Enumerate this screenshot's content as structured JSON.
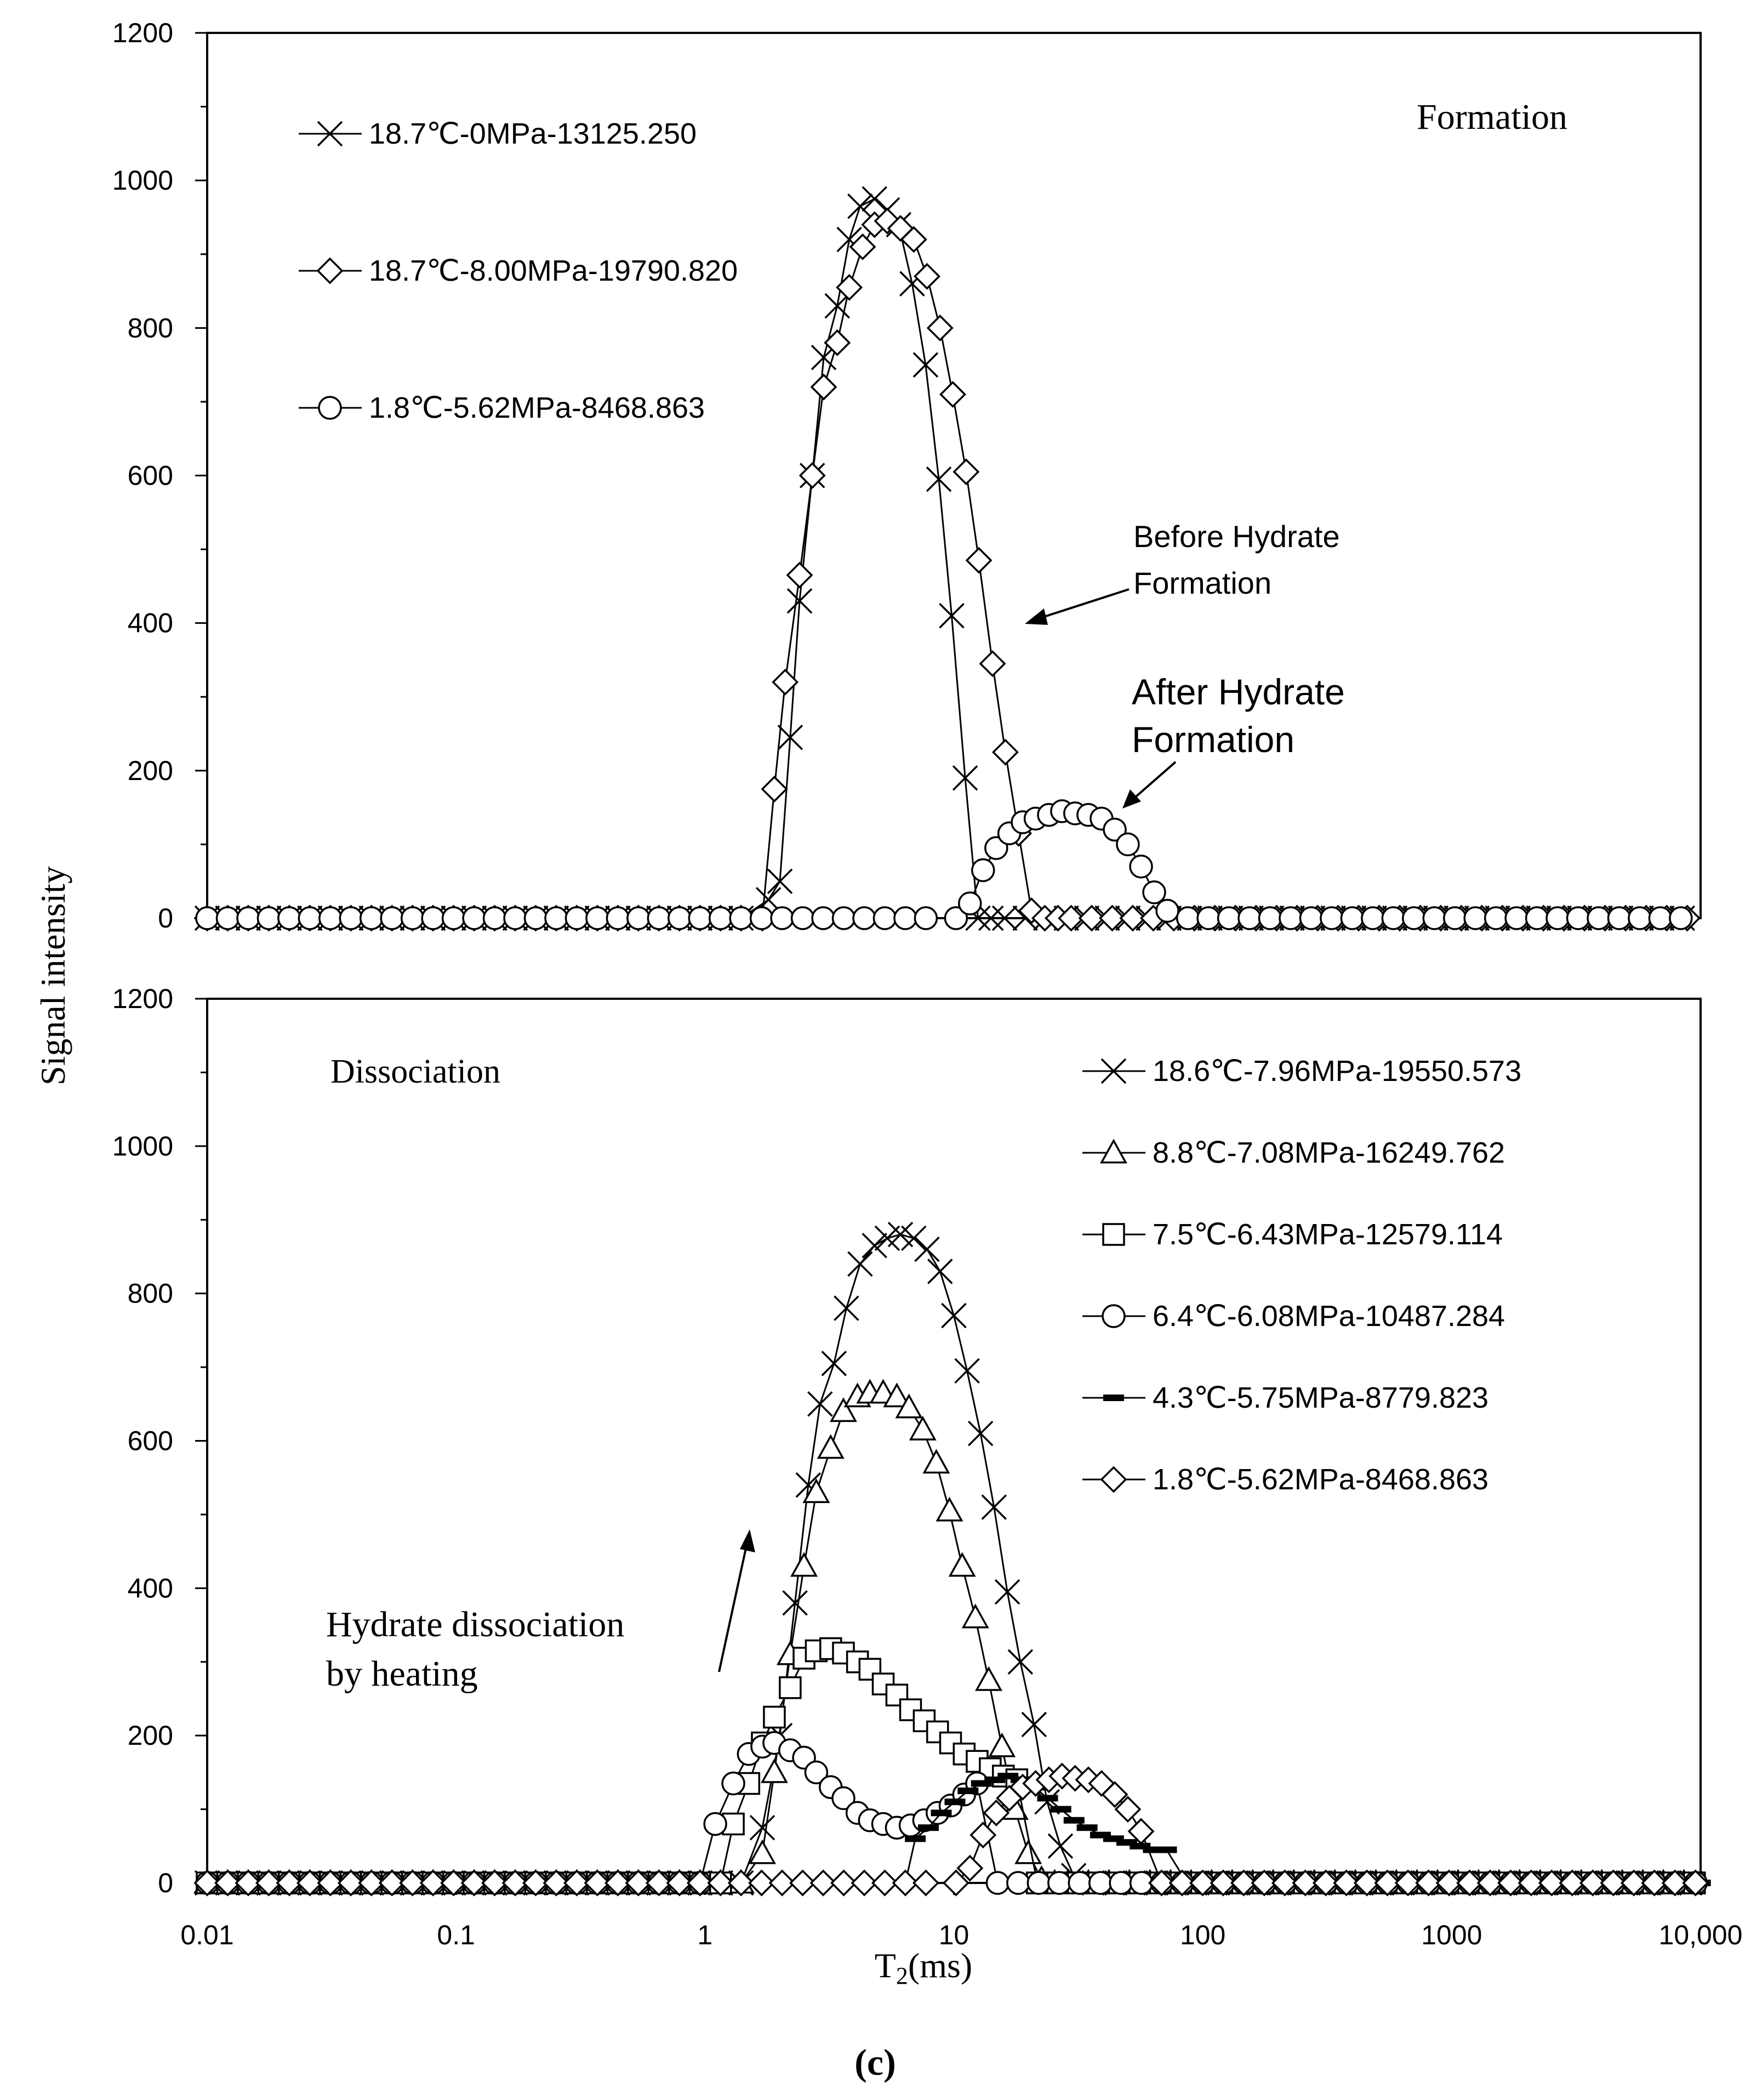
{
  "figure_label": "(c)",
  "y_axis_label": "Signal intensity",
  "chart_data": [
    {
      "type": "line",
      "panel": "top",
      "title": "Formation",
      "xlabel": "T2(ms)",
      "ylabel": "Signal intensity",
      "xscale": "log",
      "xlim": [
        0.01,
        10000
      ],
      "ylim": [
        0,
        1200
      ],
      "ytick_labels": [
        "0",
        "200",
        "400",
        "600",
        "800",
        "1000",
        "1200"
      ],
      "legend_position": "top-left",
      "annotations": [
        {
          "text": "Before Hydrate Formation",
          "lines": [
            "Before Hydrate",
            "Formation"
          ],
          "target": [
            18,
            400
          ]
        },
        {
          "text": "After Hydrate Formation",
          "lines": [
            "After Hydrate",
            "Formation"
          ],
          "target": [
            45,
            150
          ]
        }
      ],
      "series": [
        {
          "name": "18.7℃-0MPa-13125.250",
          "marker": "x",
          "x": [
            1.8,
            2.0,
            2.2,
            2.4,
            2.7,
            3.0,
            3.4,
            3.8,
            4.2,
            4.8,
            5.4,
            6.0,
            6.8,
            7.7,
            8.7,
            9.8,
            11.1,
            12.5,
            14.1,
            16.0
          ],
          "y": [
            25,
            50,
            245,
            430,
            600,
            760,
            830,
            920,
            965,
            975,
            960,
            940,
            860,
            750,
            595,
            410,
            190,
            0,
            0,
            0
          ]
        },
        {
          "name": "18.7℃-8.00MPa-19790.820",
          "marker": "diamond",
          "x": [
            1.7,
            1.9,
            2.1,
            2.4,
            2.7,
            3.0,
            3.4,
            3.8,
            4.3,
            4.8,
            5.4,
            6.1,
            6.9,
            7.8,
            8.8,
            9.9,
            11.2,
            12.6,
            14.3,
            16.1,
            18.2,
            20.5,
            23.2,
            26.2,
            29.6
          ],
          "y": [
            0,
            175,
            320,
            465,
            600,
            720,
            780,
            855,
            910,
            940,
            945,
            935,
            920,
            870,
            800,
            710,
            605,
            485,
            345,
            225,
            115,
            10,
            0,
            0,
            0
          ]
        },
        {
          "name": "1.8℃-5.62MPa-8468.863",
          "marker": "circle",
          "x": [
            10.2,
            11.6,
            13.1,
            14.8,
            16.7,
            18.9,
            21.3,
            24.1,
            27.2,
            30.7,
            34.7,
            39.2,
            44.3,
            50.0,
            56.5,
            63.8,
            72.1
          ],
          "y": [
            0,
            20,
            65,
            95,
            115,
            130,
            135,
            140,
            145,
            142,
            140,
            135,
            120,
            100,
            70,
            35,
            10
          ]
        }
      ]
    },
    {
      "type": "line",
      "panel": "bottom",
      "title": "Dissociation",
      "xlabel": "T2(ms)",
      "ylabel": "Signal intensity",
      "xscale": "log",
      "xlim": [
        0.01,
        10000
      ],
      "ylim": [
        0,
        1200
      ],
      "ytick_labels": [
        "0",
        "200",
        "400",
        "600",
        "800",
        "1000",
        "1200"
      ],
      "xtick_labels": [
        "0.01",
        "0.1",
        "1",
        "10",
        "100",
        "1000",
        "10,000"
      ],
      "legend_position": "top-right",
      "annotations": [
        {
          "text": "Hydrate dissociation by heating",
          "lines": [
            "Hydrate dissociation",
            "by heating"
          ]
        }
      ],
      "series": [
        {
          "name": "18.6℃-7.96MPa-19550.573",
          "marker": "x",
          "x": [
            1.7,
            2.0,
            2.3,
            2.6,
            2.9,
            3.3,
            3.7,
            4.2,
            4.8,
            5.4,
            6.1,
            6.9,
            7.8,
            8.8,
            10.0,
            11.3,
            12.8,
            14.5,
            16.4,
            18.5,
            21.0,
            23.7,
            26.8,
            30.3
          ],
          "y": [
            75,
            200,
            380,
            540,
            650,
            705,
            780,
            840,
            865,
            875,
            880,
            875,
            860,
            830,
            770,
            695,
            610,
            510,
            395,
            300,
            215,
            110,
            50,
            10
          ]
        },
        {
          "name": "8.8℃-7.08MPa-16249.762",
          "marker": "triangle",
          "x": [
            1.7,
            1.9,
            2.2,
            2.5,
            2.8,
            3.2,
            3.6,
            4.1,
            4.6,
            5.2,
            5.9,
            6.6,
            7.5,
            8.5,
            9.6,
            10.8,
            12.2,
            13.8,
            15.6,
            17.6,
            19.9,
            22.5,
            25.4,
            28.7
          ],
          "y": [
            40,
            150,
            310,
            430,
            530,
            590,
            640,
            660,
            665,
            665,
            660,
            645,
            615,
            570,
            505,
            430,
            360,
            275,
            185,
            100,
            40,
            5,
            0,
            0
          ]
        },
        {
          "name": "7.5℃-6.43MPa-12579.114",
          "marker": "square",
          "x": [
            1.3,
            1.5,
            1.7,
            1.9,
            2.2,
            2.5,
            2.8,
            3.2,
            3.6,
            4.1,
            4.6,
            5.2,
            5.9,
            6.7,
            7.6,
            8.6,
            9.7,
            11.0,
            12.4,
            14.0,
            15.8,
            17.9
          ],
          "y": [
            80,
            135,
            190,
            225,
            265,
            305,
            315,
            318,
            312,
            300,
            290,
            270,
            255,
            235,
            220,
            205,
            190,
            175,
            165,
            155,
            145,
            140
          ]
        },
        {
          "name": "6.4℃-6.08MPa-10487.284",
          "marker": "circle",
          "x": [
            1.1,
            1.3,
            1.5,
            1.7,
            1.9,
            2.2,
            2.5,
            2.8,
            3.2,
            3.6,
            4.1,
            4.6,
            5.2,
            5.9,
            6.7,
            7.6,
            8.6,
            9.7,
            11.0,
            12.4
          ],
          "y": [
            80,
            135,
            175,
            185,
            190,
            180,
            170,
            150,
            130,
            115,
            95,
            85,
            80,
            75,
            78,
            85,
            95,
            105,
            120,
            135
          ]
        },
        {
          "name": "4.3℃-5.75MPa-8779.823",
          "marker": "bar",
          "x": [
            7.0,
            7.9,
            8.9,
            10.1,
            11.4,
            12.9,
            14.6,
            16.5,
            18.6,
            21.0,
            23.8,
            26.9,
            30.4,
            34.3,
            38.8,
            43.8,
            49.5,
            56.0,
            63.3,
            71.5
          ],
          "y": [
            60,
            75,
            95,
            110,
            125,
            135,
            140,
            145,
            140,
            130,
            115,
            100,
            85,
            75,
            65,
            60,
            55,
            50,
            45,
            45
          ]
        },
        {
          "name": "1.8℃-5.62MPa-8468.863",
          "marker": "diamond",
          "x": [
            10.2,
            11.6,
            13.1,
            14.8,
            16.7,
            18.9,
            21.3,
            24.1,
            27.2,
            30.7,
            34.7,
            39.2,
            44.3,
            50.0,
            56.5
          ],
          "y": [
            0,
            20,
            65,
            95,
            115,
            130,
            135,
            140,
            145,
            142,
            140,
            135,
            120,
            100,
            70
          ]
        }
      ]
    }
  ]
}
